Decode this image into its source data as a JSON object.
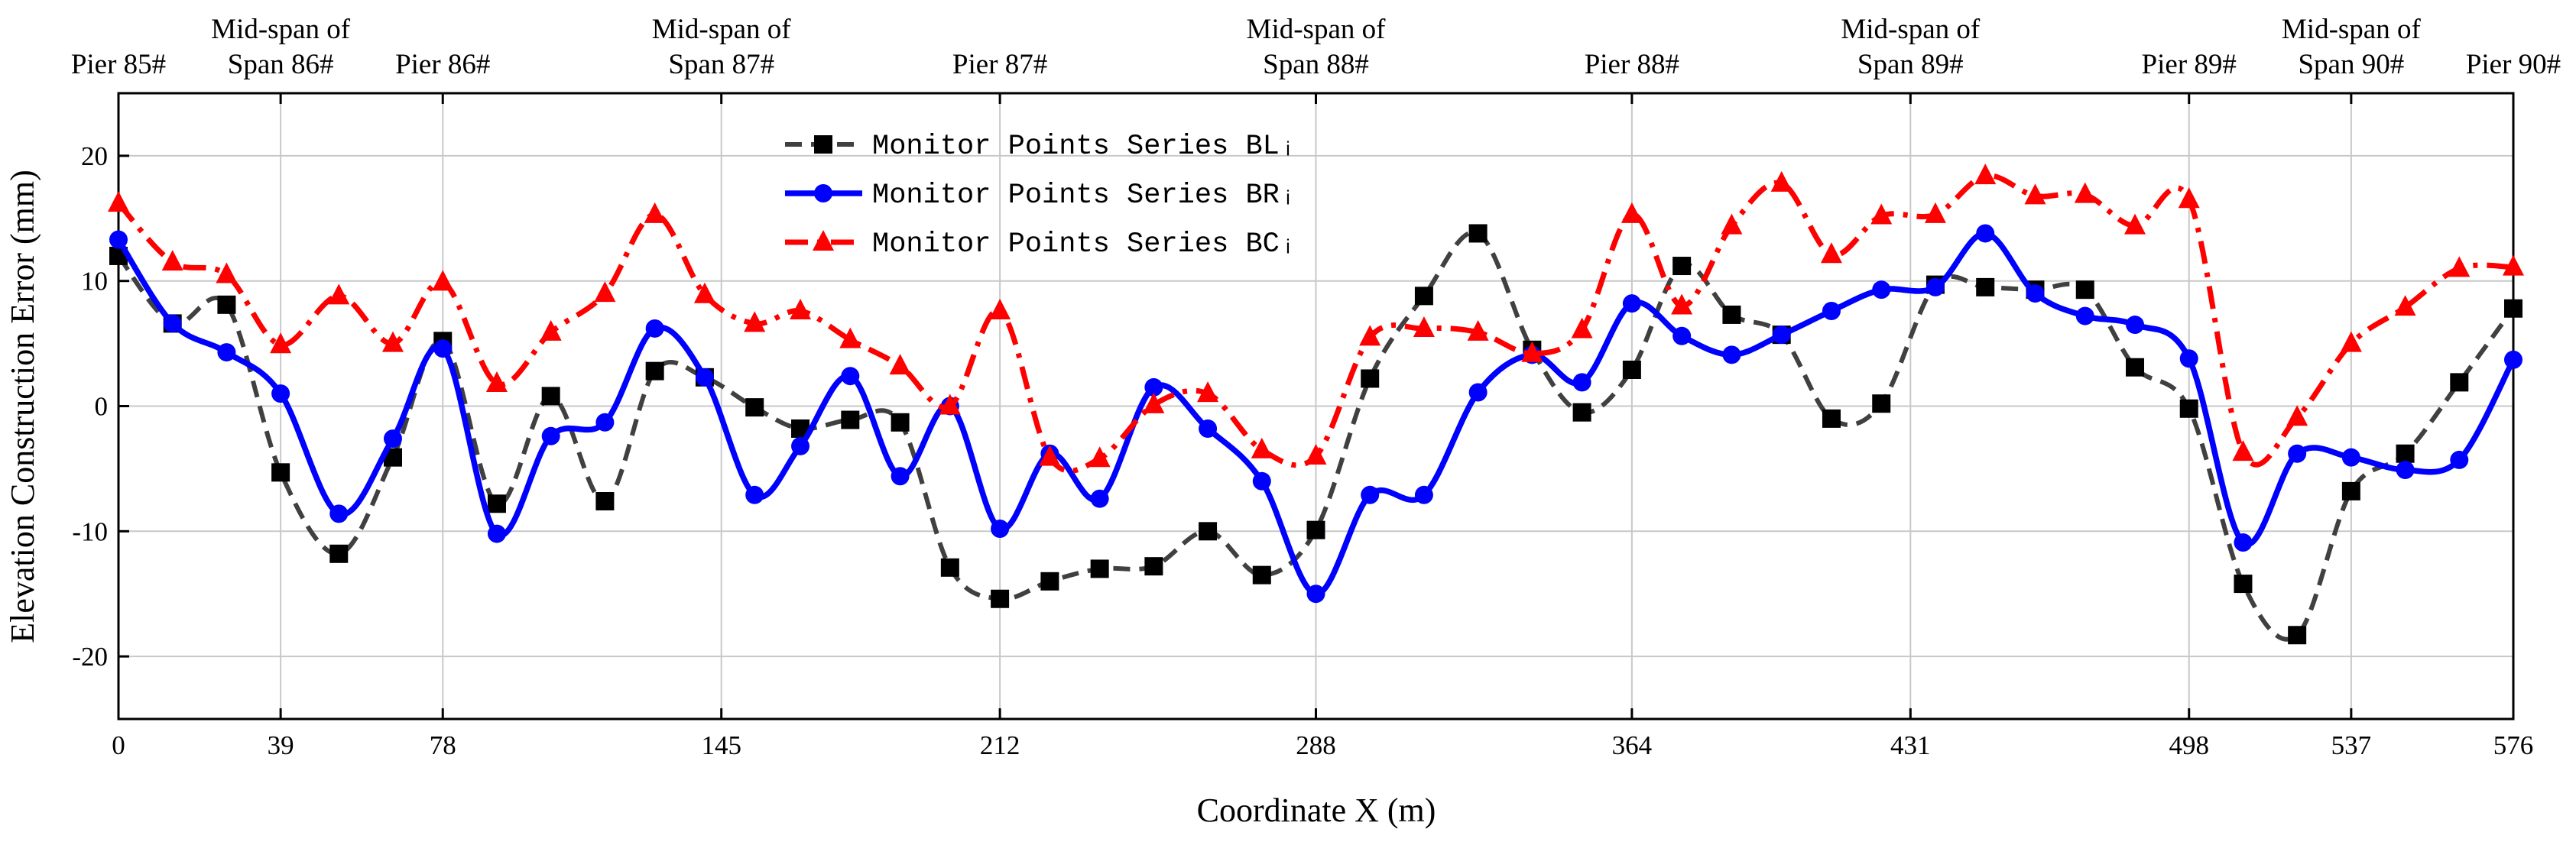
{
  "chart_data": {
    "type": "line",
    "xlabel": "Coordinate X (m)",
    "ylabel": "Elevation Construction Error (mm)",
    "xlim": [
      0,
      576
    ],
    "xticks": [
      0,
      39,
      78,
      145,
      212,
      288,
      364,
      431,
      498,
      537,
      576
    ],
    "ylim": [
      -25,
      25
    ],
    "yticks": [
      -20,
      -10,
      0,
      10,
      20
    ],
    "grid": true,
    "legend": "upper center",
    "x2ticks": [
      {
        "value": 0,
        "label": "Pier 85#"
      },
      {
        "value": 39,
        "label": "Mid-span of Span 86#"
      },
      {
        "value": 78,
        "label": "Pier 86#"
      },
      {
        "value": 145,
        "label": "Mid-span of Span 87#"
      },
      {
        "value": 212,
        "label": "Pier 87#"
      },
      {
        "value": 288,
        "label": "Mid-span of Span 88#"
      },
      {
        "value": 364,
        "label": "Pier 88#"
      },
      {
        "value": 431,
        "label": "Mid-span of Span 89#"
      },
      {
        "value": 498,
        "label": "Pier 89#"
      },
      {
        "value": 537,
        "label": "Mid-span of Span 90#"
      },
      {
        "value": 576,
        "label": "Pier 90#"
      }
    ],
    "x": [
      0,
      13,
      26,
      39,
      53,
      66,
      78,
      91,
      104,
      117,
      129,
      141,
      153,
      164,
      176,
      188,
      200,
      212,
      224,
      236,
      249,
      262,
      275,
      288,
      301,
      314,
      327,
      340,
      352,
      364,
      376,
      388,
      400,
      412,
      424,
      437,
      449,
      461,
      473,
      485,
      498,
      511,
      524,
      537,
      550,
      563,
      576
    ],
    "series": [
      {
        "name": "Monitor Points Series BLᵢ",
        "color": "#404040",
        "marker": "square",
        "dash": "dashed",
        "values": [
          12.0,
          6.6,
          8.1,
          -5.3,
          -11.8,
          -4.1,
          5.2,
          -7.8,
          0.8,
          -7.6,
          2.8,
          2.3,
          -0.1,
          -1.8,
          -1.1,
          -1.3,
          -12.9,
          -15.4,
          -14.0,
          -13.0,
          -12.8,
          -10.0,
          -13.5,
          -9.9,
          2.2,
          8.8,
          13.8,
          4.5,
          -0.5,
          2.9,
          11.2,
          7.3,
          5.7,
          -1.0,
          0.2,
          9.7,
          9.5,
          9.3,
          9.3,
          3.1,
          -0.2,
          -14.2,
          -18.3,
          -6.8,
          -3.8,
          1.9,
          7.8
        ]
      },
      {
        "name": "Monitor Points Series BRᵢ",
        "color": "#0000ff",
        "marker": "circle",
        "dash": "solid",
        "values": [
          13.3,
          6.6,
          4.3,
          1.0,
          -8.6,
          -2.6,
          4.6,
          -10.2,
          -2.4,
          -1.3,
          6.2,
          2.3,
          -7.1,
          -3.2,
          2.4,
          -5.6,
          0.0,
          -9.8,
          -3.8,
          -7.4,
          1.5,
          -1.8,
          -6.0,
          -15.0,
          -7.1,
          -7.1,
          1.1,
          4.1,
          1.9,
          8.2,
          5.6,
          4.1,
          5.7,
          7.6,
          9.3,
          9.5,
          13.8,
          9.0,
          7.2,
          6.5,
          3.8,
          -10.9,
          -3.8,
          -4.1,
          -5.1,
          -4.3,
          3.7
        ]
      },
      {
        "name": "Monitor Points Series BCᵢ",
        "color": "#ff0000",
        "marker": "triangle",
        "dash": "dashdot",
        "values": [
          16.2,
          11.5,
          10.5,
          4.9,
          8.8,
          5.0,
          9.9,
          1.8,
          5.9,
          9.0,
          15.3,
          8.9,
          6.6,
          7.6,
          5.3,
          3.2,
          0.0,
          7.6,
          -4.1,
          -4.2,
          0.1,
          1.0,
          -3.5,
          -4.0,
          5.5,
          6.2,
          5.9,
          4.2,
          6.1,
          15.3,
          8.0,
          14.4,
          17.8,
          12.1,
          15.2,
          15.3,
          18.4,
          16.8,
          16.9,
          14.4,
          16.5,
          -3.7,
          -0.9,
          5.0,
          7.9,
          11.0,
          11.1
        ]
      }
    ]
  }
}
